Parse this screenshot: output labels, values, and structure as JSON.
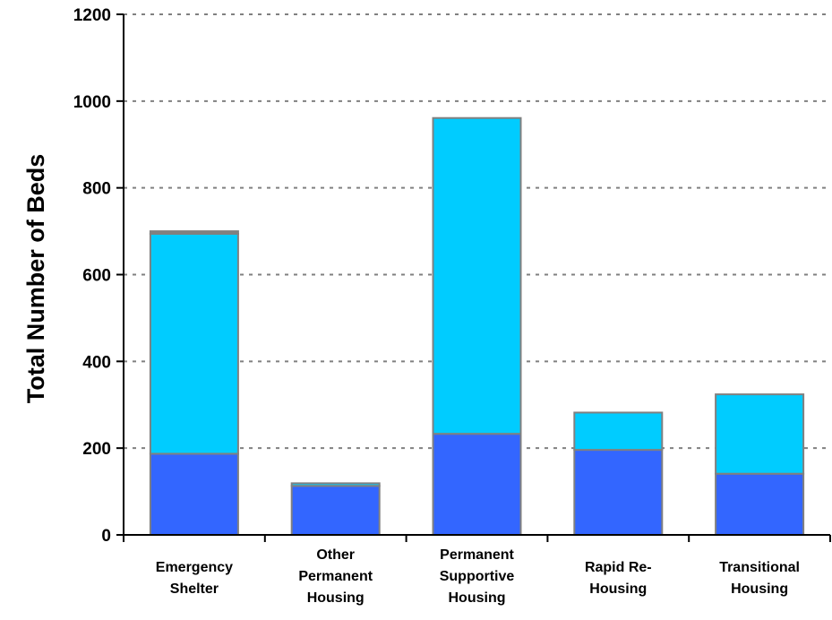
{
  "chart_data": {
    "type": "bar",
    "stacked": true,
    "title": "",
    "xlabel": "",
    "ylabel": "Total Number of Beds",
    "ylim": [
      0,
      1200
    ],
    "yticks": [
      0,
      200,
      400,
      600,
      800,
      1000,
      1200
    ],
    "grid": true,
    "legend": "none",
    "categories": [
      [
        "Emergency",
        "Shelter"
      ],
      [
        "Other",
        "Permanent",
        "Housing"
      ],
      [
        "Permanent",
        "Supportive",
        "Housing"
      ],
      [
        "Rapid Re-",
        "Housing"
      ],
      [
        "Transitional",
        "Housing"
      ]
    ],
    "series": [
      {
        "color": "#3366ff",
        "values": [
          187,
          113,
          233,
          196,
          141
        ]
      },
      {
        "color": "#00ccff",
        "values": [
          507,
          6,
          728,
          86,
          183
        ]
      },
      {
        "color": "#808080",
        "values": [
          6,
          0,
          0,
          0,
          0
        ]
      }
    ],
    "colors": {
      "grid": "#808080",
      "axis": "#000000",
      "bar_border": "#808080"
    }
  }
}
